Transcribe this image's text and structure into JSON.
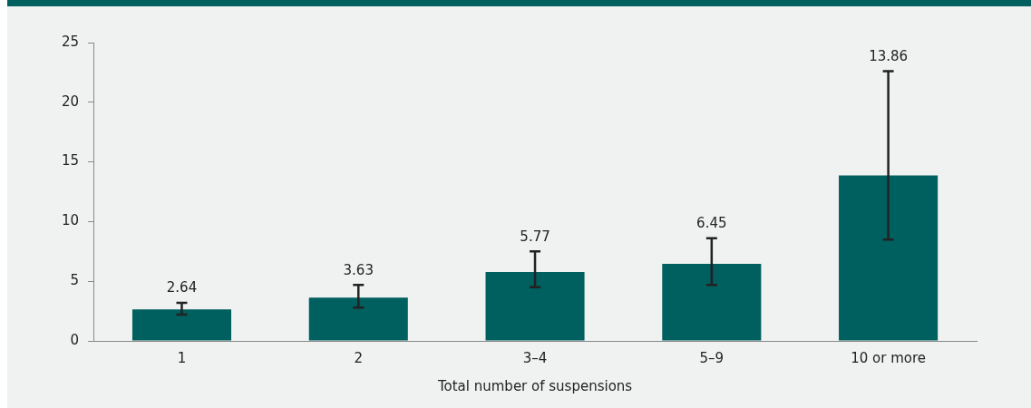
{
  "chart_data": {
    "type": "bar",
    "xlabel": "Total number of suspensions",
    "categories": [
      "1",
      "2",
      "3–4",
      "5–9",
      "10 or more"
    ],
    "values": [
      2.64,
      3.63,
      5.77,
      6.45,
      13.86
    ],
    "errors": [
      [
        2.2,
        3.2
      ],
      [
        2.8,
        4.7
      ],
      [
        4.5,
        7.5
      ],
      [
        4.7,
        8.6
      ],
      [
        8.5,
        22.6
      ]
    ],
    "color": "#005f5f",
    "ylim": [
      0,
      25
    ],
    "yticks": [
      0,
      5,
      10,
      15,
      20,
      25
    ],
    "value_labels": [
      "2.64",
      "3.63",
      "5.77",
      "6.45",
      null
    ],
    "annotations": [
      {
        "text": "13.86",
        "x": "10 or more",
        "y": 22.6
      }
    ],
    "grid": false,
    "legend": false
  }
}
